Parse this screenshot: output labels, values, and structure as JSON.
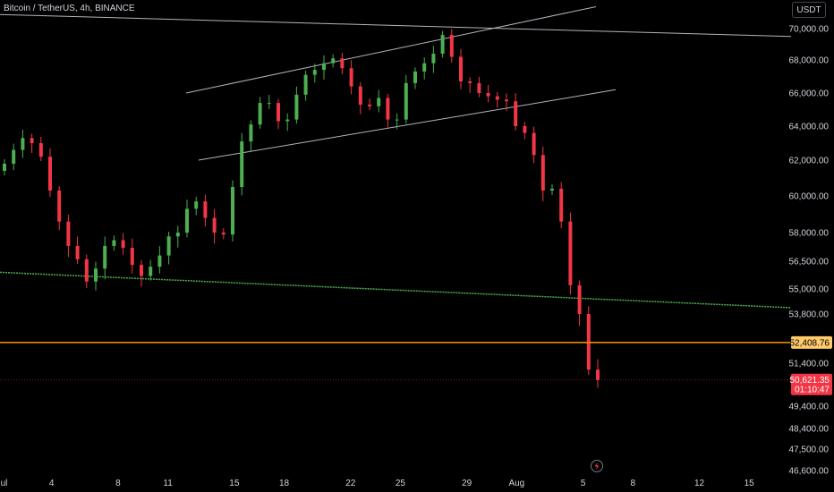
{
  "header": {
    "title": "Bitcoin / TetherUS, 4h, BINANCE",
    "currency": "USDT"
  },
  "colors": {
    "up": "#26a69a",
    "upBright": "#4caf50",
    "down": "#f23645",
    "trend": "#b2b5be",
    "support": "#4caf50",
    "level": "#ff9800",
    "levelBadge": "#ffca6a",
    "priceBadge": "#f23645"
  },
  "badges": {
    "level_price": "52,408.76",
    "last_price": "50,621.35",
    "countdown": "01:10:47"
  },
  "chart_data": {
    "type": "candlestick",
    "y_ticks": [
      "70,000.00",
      "68,000.00",
      "66,000.00",
      "64,000.00",
      "62,000.00",
      "60,000.00",
      "58,000.00",
      "56,500.00",
      "55,000.00",
      "53,800.00",
      "51,400.00",
      "49,400.00",
      "48,400.00",
      "47,500.00",
      "46,600.00"
    ],
    "x_ticks": [
      "Jul",
      "4",
      "8",
      "11",
      "15",
      "18",
      "22",
      "25",
      "29",
      "Aug",
      "5",
      "8",
      "12",
      "15"
    ],
    "x_dates": [
      "2024-07-01",
      "2024-07-04",
      "2024-07-08",
      "2024-07-11",
      "2024-07-15",
      "2024-07-18",
      "2024-07-22",
      "2024-07-25",
      "2024-07-29",
      "2024-08-01",
      "2024-08-05",
      "2024-08-08",
      "2024-08-12",
      "2024-08-15"
    ],
    "horizontal_levels": [
      52408.76
    ],
    "last_price": 50621.35,
    "closes": [
      61800,
      62600,
      63300,
      63000,
      62200,
      60300,
      58600,
      57300,
      56600,
      55400,
      56100,
      57300,
      57600,
      57200,
      56300,
      55700,
      56200,
      56800,
      57800,
      58000,
      59300,
      59700,
      58800,
      58000,
      57900,
      60500,
      63100,
      64100,
      65400,
      65400,
      64300,
      64400,
      65900,
      67100,
      67400,
      67800,
      68100,
      67500,
      66400,
      65300,
      65200,
      65700,
      64400,
      64400,
      66600,
      67300,
      67800,
      68400,
      69600,
      68200,
      66700,
      66600,
      66000,
      65800,
      65600,
      65500,
      64000,
      63600,
      62300,
      60300,
      60400,
      58600,
      55200,
      53800,
      51100,
      50621
    ]
  }
}
